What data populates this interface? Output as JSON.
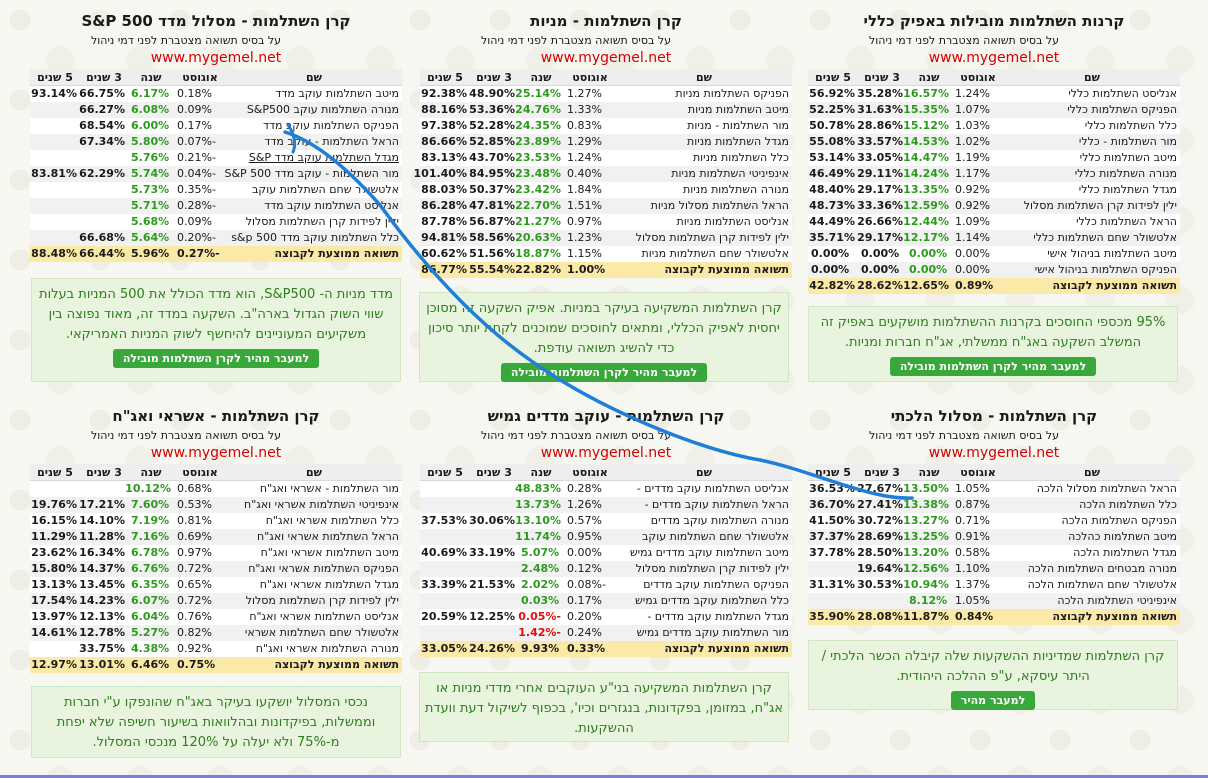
{
  "colors": {
    "positive_green": "#2d9b1e",
    "negative_red": "#e01010",
    "site_red": "#d40000",
    "average_row": "#fbe9a8",
    "note_background": "#e9f4de",
    "button_green": "#38a83a",
    "scribble_blue": "#1f7fd6"
  },
  "panels": [
    {
      "title": "קרנות השתלמות מובילות באפיק כללי",
      "subtitle": "על בסיס תשואה מצטברת לפני דמי ניהול",
      "site": "www.mygemel.net",
      "headers": {
        "name": "שם",
        "aug": "אוגוסט",
        "year": "שנה",
        "y3": "3 שנים",
        "y5": "5 שנים"
      },
      "rows": [
        {
          "name": "אנליסט השתלמות כללי",
          "aug": "1.24%",
          "year": "16.57%",
          "y3": "35.28%",
          "y5": "56.92%"
        },
        {
          "name": "הפניקס השתלמות כללי",
          "aug": "1.07%",
          "year": "15.35%",
          "y3": "31.63%",
          "y5": "52.25%"
        },
        {
          "name": "כלל השתלמות כללי",
          "aug": "1.03%",
          "year": "15.12%",
          "y3": "28.86%",
          "y5": "50.78%"
        },
        {
          "name": "מור השתלמות - כללי",
          "aug": "1.02%",
          "year": "14.53%",
          "y3": "33.57%",
          "y5": "55.08%"
        },
        {
          "name": "מיטב השתלמות כללי",
          "aug": "1.19%",
          "year": "14.47%",
          "y3": "33.05%",
          "y5": "53.14%"
        },
        {
          "name": "מנורה השתלמות כללי",
          "aug": "1.17%",
          "year": "14.24%",
          "y3": "29.11%",
          "y5": "46.49%"
        },
        {
          "name": "מגדל השתלמות כללי",
          "aug": "0.92%",
          "year": "13.35%",
          "y3": "29.17%",
          "y5": "48.40%"
        },
        {
          "name": "ילין לפידות קרן השתלמות מסלול",
          "aug": "0.92%",
          "year": "12.59%",
          "y3": "33.36%",
          "y5": "48.73%"
        },
        {
          "name": "הראל השתלמות כללי",
          "aug": "1.09%",
          "year": "12.44%",
          "y3": "26.66%",
          "y5": "44.49%"
        },
        {
          "name": "אלטשולר שחם השתלמות כללי",
          "aug": "1.14%",
          "year": "12.17%",
          "y3": "29.17%",
          "y5": "35.71%"
        },
        {
          "name": "מיטב השתלמות בניהול אישי",
          "aug": "0.00%",
          "year": "0.00%",
          "y3": "0.00%",
          "y5": "0.00%"
        },
        {
          "name": "הפניקס השתלמות בניהול אישי",
          "aug": "0.00%",
          "year": "0.00%",
          "y3": "0.00%",
          "y5": "0.00%"
        }
      ],
      "avg": {
        "name": "תשואה ממוצעת לקבוצה",
        "aug": "0.89%",
        "year": "12.65%",
        "y3": "28.62%",
        "y5": "42.82%"
      },
      "note": "95% מכספי החוסכים בקרנות ההשתלמות מושקעים באפיק זה המשלב השקעה באג\"ח ממשלתי, אג\"ח חברות ומניות.",
      "button": "למעבר מהיר לקרן השתלמות מובילה"
    },
    {
      "title": "קרן השתלמות - מניות",
      "subtitle": "על בסיס תשואה מצטברת לפני דמי ניהול",
      "site": "www.mygemel.net",
      "headers": {
        "name": "שם",
        "aug": "אוגוסט",
        "year": "שנה",
        "y3": "3 שנים",
        "y5": "5 שנים"
      },
      "rows": [
        {
          "name": "הפניקס השתלמות מניות",
          "aug": "1.27%",
          "year": "25.14%",
          "y3": "48.90%",
          "y5": "92.38%"
        },
        {
          "name": "מיטב השתלמות מניות",
          "aug": "1.33%",
          "year": "24.76%",
          "y3": "53.36%",
          "y5": "88.16%"
        },
        {
          "name": "מור השתלמות - מניות",
          "aug": "0.83%",
          "year": "24.35%",
          "y3": "52.28%",
          "y5": "97.38%"
        },
        {
          "name": "מגדל השתלמות מניות",
          "aug": "1.29%",
          "year": "23.89%",
          "y3": "52.85%",
          "y5": "86.66%"
        },
        {
          "name": "כלל השתלמות מניות",
          "aug": "1.24%",
          "year": "23.53%",
          "y3": "43.70%",
          "y5": "83.13%"
        },
        {
          "name": "אינפיניטי השתלמות מניות",
          "aug": "0.40%",
          "year": "23.48%",
          "y3": "84.95%",
          "y5": "101.40%"
        },
        {
          "name": "מנורה השתלמות מניות",
          "aug": "1.84%",
          "year": "23.42%",
          "y3": "50.37%",
          "y5": "88.03%"
        },
        {
          "name": "הראל השתלמות מסלול מניות",
          "aug": "1.51%",
          "year": "22.70%",
          "y3": "47.81%",
          "y5": "86.28%"
        },
        {
          "name": "אנליסט השתלמות מניות",
          "aug": "0.97%",
          "year": "21.27%",
          "y3": "56.87%",
          "y5": "87.78%"
        },
        {
          "name": "ילין לפידות קרן השתלמות מסלול",
          "aug": "1.23%",
          "year": "20.63%",
          "y3": "58.56%",
          "y5": "94.81%"
        },
        {
          "name": "אלטשולר שחם השתלמות מניות",
          "aug": "1.15%",
          "year": "18.87%",
          "y3": "51.56%",
          "y5": "60.62%"
        }
      ],
      "avg": {
        "name": "תשואה ממוצעת לקבוצה",
        "aug": "1.00%",
        "year": "22.82%",
        "y3": "55.54%",
        "y5": "86.77%"
      },
      "note": "קרן השתלמות המשקיעה בעיקר במניות. אפיק השקעה זה מסוכן יחסית לאפיק הכללי, ומתאים לחוסכים שמוכנים לקחת יותר סיכון כדי להשיג תשואה עודפת.",
      "button": "למעבר מהיר לקרן השתלמות מובילה"
    },
    {
      "title": "קרן השתלמות - מסלול מדד S&P 500",
      "subtitle": "על בסיס תשואה מצטברת לפני דמי ניהול",
      "site": "www.mygemel.net",
      "headers": {
        "name": "שם",
        "aug": "אוגוסט",
        "year": "שנה",
        "y3": "3 שנים",
        "y5": "5 שנים"
      },
      "rows": [
        {
          "name": "מיטב השתלמות עוקב מדד",
          "aug": "0.18%",
          "year": "6.17%",
          "y3": "66.75%",
          "y5": "93.14%"
        },
        {
          "name": "מנורה השתלמות עוקב S&P500",
          "aug": "0.09%",
          "year": "6.08%",
          "y3": "66.27%",
          "y5": ""
        },
        {
          "name": "הפניקס השתלמות עוקב מדד",
          "aug": "0.17%",
          "year": "6.00%",
          "y3": "68.54%",
          "y5": ""
        },
        {
          "name": "הראל השתלמות - עוקב מדד",
          "aug": "-0.07%",
          "year": "5.80%",
          "y3": "67.34%",
          "y5": ""
        },
        {
          "name": "מגדל השתלמות עוקב מדד S&P",
          "aug": "-0.21%",
          "year": "5.76%",
          "y3": "",
          "y5": ""
        },
        {
          "name": "מור השתלמות - עוקב מדד S&P 500",
          "aug": "-0.04%",
          "year": "5.74%",
          "y3": "62.29%",
          "y5": "83.81%"
        },
        {
          "name": "אלטשולר שחם השתלמות עוקב",
          "aug": "-0.35%",
          "year": "5.73%",
          "y3": "",
          "y5": ""
        },
        {
          "name": "אנליסט השתלמות עוקב מדד",
          "aug": "-0.28%",
          "year": "5.71%",
          "y3": "",
          "y5": ""
        },
        {
          "name": "ילין לפידות קרן השתלמות מסלול",
          "aug": "0.09%",
          "year": "5.68%",
          "y3": "",
          "y5": ""
        },
        {
          "name": "כלל השתלמות עוקב מדד s&p 500",
          "aug": "-0.20%",
          "year": "5.64%",
          "y3": "66.68%",
          "y5": ""
        }
      ],
      "avg": {
        "name": "תשואה ממוצעת לקבוצה",
        "aug": "-0.27%",
        "year": "5.96%",
        "y3": "66.44%",
        "y5": "88.48%"
      },
      "note": "מדד מניות ה- S&P500, הוא מדד הכולל את 500 המניות בעלות שווי השוק הגדול בארה\"ב. השקעה במדד זה, מאוד נפוצה בין משקיעים המעוניינים להיחשף לשוק המניות האמריקאי.",
      "button": "למעבר מהיר לקרן השתלמות מובילה"
    },
    {
      "title": "קרן השתלמות - מסלול הלכתי",
      "subtitle": "על בסיס תשואה מצטברת לפני דמי ניהול",
      "site": "www.mygemel.net",
      "headers": {
        "name": "שם",
        "aug": "אוגוסט",
        "year": "שנה",
        "y3": "3 שנים",
        "y5": "5 שנים"
      },
      "rows": [
        {
          "name": "הראל השתלמות מסלול הלכה",
          "aug": "1.05%",
          "year": "13.50%",
          "y3": "27.67%",
          "y5": "36.53%"
        },
        {
          "name": "כלל השתלמות הלכה",
          "aug": "0.87%",
          "year": "13.38%",
          "y3": "27.41%",
          "y5": "36.70%"
        },
        {
          "name": "הפניקס השתלמות הלכה",
          "aug": "0.71%",
          "year": "13.27%",
          "y3": "30.72%",
          "y5": "41.50%"
        },
        {
          "name": "מיטב השתלמות כהלכה",
          "aug": "0.91%",
          "year": "13.25%",
          "y3": "28.69%",
          "y5": "37.37%"
        },
        {
          "name": "מגדל השתלמות הלכה",
          "aug": "0.58%",
          "year": "13.20%",
          "y3": "28.50%",
          "y5": "37.78%"
        },
        {
          "name": "מנורה מבטחים השתלמות הלכה",
          "aug": "1.10%",
          "year": "12.56%",
          "y3": "19.64%",
          "y5": ""
        },
        {
          "name": "אלטשולר שחם השתלמות הלכה",
          "aug": "1.37%",
          "year": "10.94%",
          "y3": "30.53%",
          "y5": "31.31%"
        },
        {
          "name": "אינפיניטי השתלמות הלכה",
          "aug": "1.05%",
          "year": "8.12%",
          "y3": "",
          "y5": ""
        }
      ],
      "avg": {
        "name": "תשואה ממוצעת לקבוצה",
        "aug": "0.84%",
        "year": "11.87%",
        "y3": "28.08%",
        "y5": "35.90%"
      },
      "note": "קרן השתלמות שמדיניות ההשקעות שלה קיבלה הכשר הלכתי / היתר עיסקא, ע\"פ ההלכה היהודית.",
      "button": "למעבר מהיר"
    },
    {
      "title": "קרן השתלמות - עוקב מדדים גמיש",
      "subtitle": "על בסיס תשואה מצטברת לפני דמי ניהול",
      "site": "www.mygemel.net",
      "headers": {
        "name": "שם",
        "aug": "אוגוסט",
        "year": "שנה",
        "y3": "3 שנים",
        "y5": "5 שנים"
      },
      "rows": [
        {
          "name": "אנליסט השתלמות עוקב מדדים -",
          "aug": "0.28%",
          "year": "48.83%",
          "y3": "",
          "y5": ""
        },
        {
          "name": "הראל השתלמות עוקב מדדים -",
          "aug": "1.26%",
          "year": "13.73%",
          "y3": "",
          "y5": ""
        },
        {
          "name": "מנורה השתלמות עוקב מדדים",
          "aug": "0.57%",
          "year": "13.10%",
          "y3": "30.06%",
          "y5": "37.53%"
        },
        {
          "name": "אלטשולר שחם השתלמות עוקב",
          "aug": "0.95%",
          "year": "11.74%",
          "y3": "",
          "y5": ""
        },
        {
          "name": "מיטב השתלמות עוקב מדדים גמיש",
          "aug": "0.00%",
          "year": "5.07%",
          "y3": "33.19%",
          "y5": "40.69%"
        },
        {
          "name": "ילין לפידות קרן השתלמות מסלול",
          "aug": "0.12%",
          "year": "2.48%",
          "y3": "",
          "y5": ""
        },
        {
          "name": "הפניקס השתלמות עוקב מדדים",
          "aug": "-0.08%",
          "year": "2.02%",
          "y3": "21.53%",
          "y5": "33.39%"
        },
        {
          "name": "כלל השתלמות עוקב מדדים גמיש",
          "aug": "0.17%",
          "year": "0.03%",
          "y3": "",
          "y5": ""
        },
        {
          "name": "מגדל השתלמות עוקב מדדים -",
          "aug": "0.20%",
          "year": "-0.05%",
          "y3": "12.25%",
          "y5": "20.59%"
        },
        {
          "name": "מור השתלמות עוקב מדדים גמיש",
          "aug": "0.24%",
          "year": "-1.42%",
          "y3": "",
          "y5": ""
        }
      ],
      "avg": {
        "name": "תשואה ממוצעת לקבוצה",
        "aug": "0.33%",
        "year": "9.93%",
        "y3": "24.26%",
        "y5": "33.05%"
      },
      "note": "קרן השתלמות המשקיעה בני\"ע העוקבים אחרי מדדי מניות או אג\"ח, במזומן, בפקדונות, בנגזרים וכיו', בכפוף לשיקול דעת וועדת ההשקעות.",
      "button": ""
    },
    {
      "title": "קרן השתלמות - אשראי ואג\"ח",
      "subtitle": "על בסיס תשואה מצטברת לפני דמי ניהול",
      "site": "www.mygemel.net",
      "headers": {
        "name": "שם",
        "aug": "אוגוסט",
        "year": "שנה",
        "y3": "3 שנים",
        "y5": "5 שנים"
      },
      "rows": [
        {
          "name": "מור השתלמות - אשראי ואג\"ח",
          "aug": "0.68%",
          "year": "10.12%",
          "y3": "",
          "y5": ""
        },
        {
          "name": "אינפיניטי השתלמות אשראי ואג\"ח",
          "aug": "0.53%",
          "year": "7.60%",
          "y3": "17.21%",
          "y5": "19.76%"
        },
        {
          "name": "כלל השתלמות אשראי ואג\"ח",
          "aug": "0.81%",
          "year": "7.19%",
          "y3": "14.10%",
          "y5": "16.15%"
        },
        {
          "name": "הראל השתלמות אשראי ואג\"ח",
          "aug": "0.69%",
          "year": "7.16%",
          "y3": "11.28%",
          "y5": "11.29%"
        },
        {
          "name": "מיטב השתלמות אשראי ואג\"ח",
          "aug": "0.97%",
          "year": "6.78%",
          "y3": "16.34%",
          "y5": "23.62%"
        },
        {
          "name": "הפניקס השתלמות אשראי ואג\"ח",
          "aug": "0.72%",
          "year": "6.76%",
          "y3": "14.37%",
          "y5": "15.80%"
        },
        {
          "name": "מגדל השתלמות אשראי ואג\"ח",
          "aug": "0.65%",
          "year": "6.35%",
          "y3": "13.45%",
          "y5": "13.13%"
        },
        {
          "name": "ילין לפידות קרן השתלמות מסלול",
          "aug": "0.72%",
          "year": "6.07%",
          "y3": "14.23%",
          "y5": "17.54%"
        },
        {
          "name": "אנליסט השתלמות אשראי ואג\"ח",
          "aug": "0.76%",
          "year": "6.04%",
          "y3": "12.13%",
          "y5": "13.97%"
        },
        {
          "name": "אלטשולר שחם השתלמות אשראי",
          "aug": "0.82%",
          "year": "5.27%",
          "y3": "12.78%",
          "y5": "14.61%"
        },
        {
          "name": "מנורה השתלמות אשראי ואג\"ח",
          "aug": "0.92%",
          "year": "4.38%",
          "y3": "33.75%",
          "y5": ""
        }
      ],
      "avg": {
        "name": "תשואה ממוצעת לקבוצה",
        "aug": "0.75%",
        "year": "6.46%",
        "y3": "13.01%",
        "y5": "12.97%"
      },
      "note": "נכסי המסלול יושקעו בעיקר באג\"ח שהונפקו ע\"י חברות וממשלות, בפיקדונות ובהלוואות בשיעור חשיפה שלא יפחת מ-75% ולא יעלה על 120% מנכסי המסלול.",
      "button": ""
    }
  ]
}
